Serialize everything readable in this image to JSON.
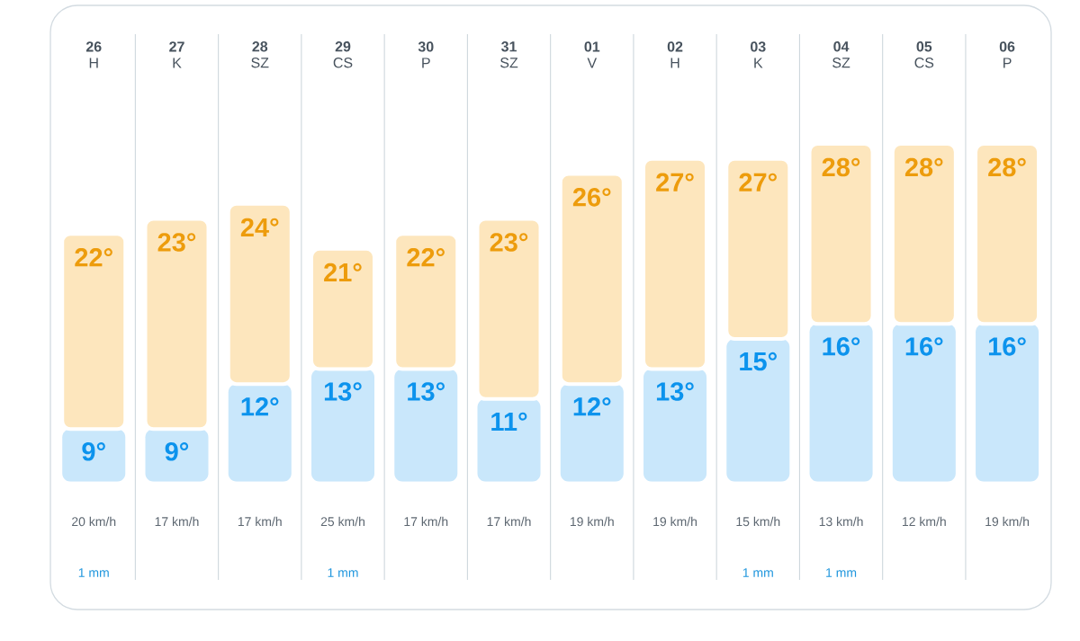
{
  "chart_data": [
    {
      "type": "bar",
      "categories": [
        "**26** H",
        "**27** K",
        "**28** SZ",
        "**29** CS",
        "**30** P",
        "**31** SZ",
        "**01** V",
        "**02** H",
        "**03** K",
        "**04** SZ",
        "**05** CS",
        "**06** P"
      ],
      "stacked": true,
      "series": [
        {
          "color": "#c9e7fb",
          "values": [
            9,
            9,
            12,
            13,
            13,
            11,
            12,
            13,
            15,
            16,
            16,
            16
          ],
          "value_labels": [
            "9°",
            "9°",
            "12°",
            "13°",
            "13°",
            "11°",
            "12°",
            "13°",
            "15°",
            "16°",
            "16°",
            "16°"
          ]
        },
        {
          "color": "#fde6bd",
          "values": [
            13,
            14,
            12,
            8,
            9,
            12,
            14,
            14,
            12,
            12,
            12,
            12
          ]
        }
      ],
      "totals": [
        "22°",
        "23°",
        "24°",
        "21°",
        "22°",
        "23°",
        "26°",
        "27°",
        "27°",
        "28°",
        "28°",
        "28°"
      ],
      "ylim": [
        5.5,
        28
      ],
      "tick_labels": "x",
      "grid": "x"
    },
    {
      "type": "other",
      "categories": [
        "20 km/h",
        "17 km/h",
        "17 km/h",
        "25 km/h",
        "17 km/h",
        "17 km/h",
        "19 km/h",
        "19 km/h",
        "15 km/h",
        "13 km/h",
        "12 km/h",
        "19 km/h"
      ],
      "color": "#5c6670"
    },
    {
      "type": "other",
      "categories": [
        "1 mm",
        null,
        null,
        "1 mm",
        null,
        null,
        null,
        null,
        "1 mm",
        "1 mm",
        null,
        null
      ],
      "color": "#1d95dd"
    }
  ]
}
